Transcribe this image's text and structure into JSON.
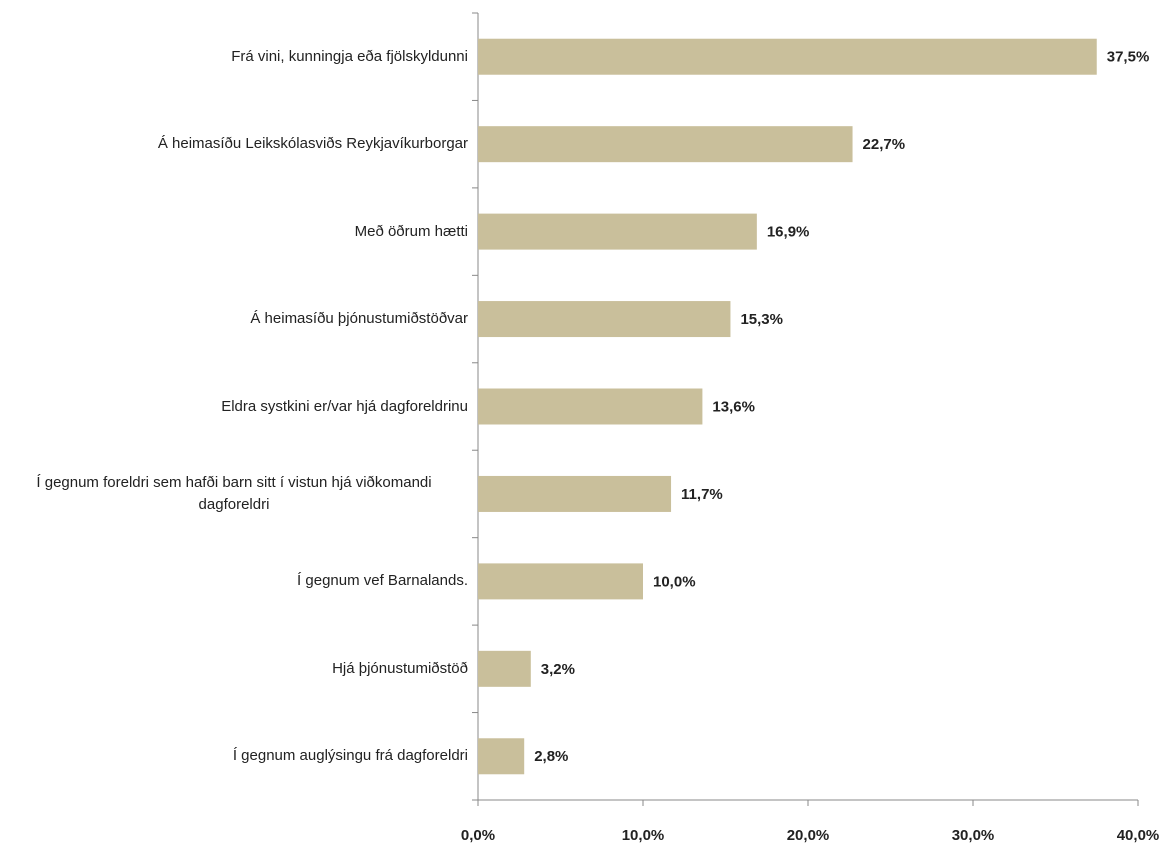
{
  "chart_data": {
    "type": "bar",
    "orientation": "horizontal",
    "categories": [
      "Frá vini, kunningja eða fjölskyldunni",
      "Á heimasíðu Leikskólasviðs Reykjavíkurborgar",
      "Með öðrum hætti",
      "Á heimasíðu þjónustumiðstöðvar",
      "Eldra systkini er/var hjá dagforeldrinu",
      "Í gegnum foreldri sem hafði barn sitt í vistun hjá viðkomandi dagforeldri",
      "Í gegnum vef Barnalands.",
      "Hjá þjónustumiðstöð",
      "Í gegnum auglýsingu frá dagforeldri"
    ],
    "values": [
      37.5,
      22.7,
      16.9,
      15.3,
      13.6,
      11.7,
      10.0,
      3.2,
      2.8
    ],
    "value_labels": [
      "37,5%",
      "22,7%",
      "16,9%",
      "15,3%",
      "13,6%",
      "11,7%",
      "10,0%",
      "3,2%",
      "2,8%"
    ],
    "color": "#c9bf9b",
    "xlim": [
      0,
      40
    ],
    "xticks": [
      {
        "value": 0,
        "label": "0,0%"
      },
      {
        "value": 10,
        "label": "10,0%"
      },
      {
        "value": 20,
        "label": "20,0%"
      },
      {
        "value": 30,
        "label": "30,0%"
      },
      {
        "value": 40,
        "label": "40,0%"
      }
    ]
  }
}
